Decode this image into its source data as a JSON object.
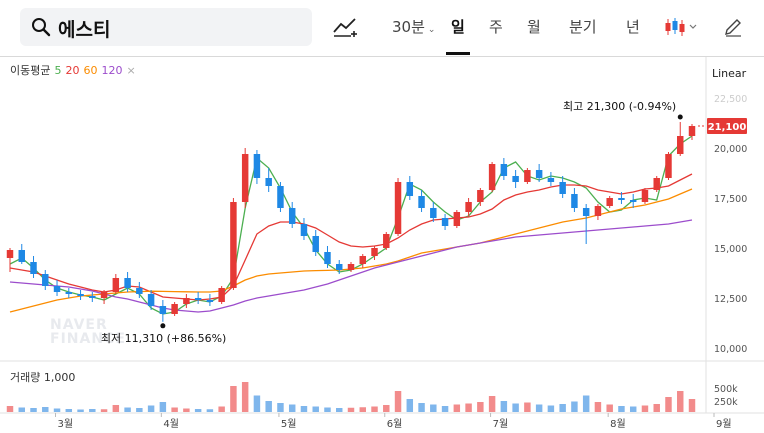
{
  "search": {
    "value": "에스티"
  },
  "toolbar": {
    "intervals": [
      "30분",
      "일",
      "주",
      "월",
      "분기",
      "년"
    ],
    "active": "일"
  },
  "ma_legend": {
    "label": "이동평균",
    "periods": [
      {
        "value": "5",
        "color": "#4caf50"
      },
      {
        "value": "20",
        "color": "#e53935"
      },
      {
        "value": "60",
        "color": "#fb8c00"
      },
      {
        "value": "120",
        "color": "#9c4dcc"
      }
    ],
    "close": "×"
  },
  "scale_label": "Linear",
  "volume_label": "거래량 1,000",
  "watermark": [
    "NAVER",
    "FINANCE"
  ],
  "colors": {
    "up": "#e53935",
    "down": "#1e88e5",
    "price_tag": "#e53935"
  },
  "chart_data": {
    "type": "candlestick",
    "price_axis": {
      "ticks": [
        10000,
        12500,
        15000,
        17500,
        20000,
        22500
      ],
      "tick_labels": [
        "10,000",
        "12,500",
        "15,000",
        "17,500",
        "20,000",
        "22,500"
      ],
      "range": [
        9600,
        23300
      ]
    },
    "volume_axis": {
      "tick_labels": [
        "500k",
        "250k"
      ],
      "ticks": [
        500000,
        250000
      ]
    },
    "x_labels": [
      "3월",
      "4월",
      "5월",
      "6월",
      "7월",
      "8월",
      "9월"
    ],
    "last_price": {
      "value": 21100,
      "label": "21,100"
    },
    "annotations": [
      {
        "text": "최고 21,300 (-0.94%)",
        "value": 21300
      },
      {
        "text": "최저 11,310 (+86.56%)",
        "value": 11310
      }
    ],
    "ma_series": [
      {
        "period": "5",
        "values": [
          14200,
          14500,
          14000,
          13400,
          13000,
          12800,
          12650,
          12550,
          12400,
          12700,
          13000,
          12700,
          12000,
          11700,
          11800,
          12200,
          12400,
          12300,
          12600,
          13500,
          17000,
          19500,
          19000,
          18000,
          16800,
          16000,
          14900,
          14200,
          13800,
          13900,
          14200,
          14600,
          15000,
          16500,
          18200,
          17900,
          17300,
          16800,
          16400,
          16600,
          17300,
          17800,
          19000,
          19300,
          18600,
          18400,
          18600,
          18500,
          18300,
          18000,
          17300,
          16800,
          16900,
          17400,
          17500,
          17400,
          19600,
          20200,
          20600
        ]
      },
      {
        "period": "20",
        "values": [
          14000,
          13900,
          13800,
          13600,
          13400,
          13200,
          13050,
          12900,
          12800,
          12900,
          13100,
          13050,
          12800,
          12550,
          12500,
          12450,
          12400,
          12450,
          12550,
          13100,
          14400,
          15700,
          16100,
          16300,
          16300,
          16200,
          16000,
          15650,
          15300,
          15100,
          15050,
          15100,
          15200,
          15500,
          15900,
          16200,
          16400,
          16450,
          16500,
          16550,
          16700,
          16950,
          17400,
          17650,
          17800,
          17900,
          18050,
          18150,
          18150,
          18100,
          17900,
          17800,
          17700,
          17800,
          17950,
          18000,
          18100,
          18400,
          18700
        ]
      },
      {
        "period": "60",
        "values": [
          11800,
          11950,
          12100,
          12250,
          12400,
          12500,
          12600,
          12650,
          12700,
          12750,
          12800,
          12820,
          12840,
          12830,
          12820,
          12810,
          12800,
          12800,
          12850,
          13100,
          13400,
          13600,
          13700,
          13750,
          13800,
          13850,
          13870,
          13880,
          13900,
          13950,
          14000,
          14100,
          14200,
          14350,
          14550,
          14750,
          14850,
          14950,
          15050,
          15150,
          15250,
          15400,
          15550,
          15700,
          15850,
          16000,
          16150,
          16300,
          16400,
          16500,
          16650,
          16800,
          16950,
          17050,
          17150,
          17300,
          17450,
          17700,
          17950
        ]
      },
      {
        "period": "120",
        "values": [
          13300,
          13250,
          13200,
          13150,
          13100,
          13050,
          12950,
          12850,
          12700,
          12550,
          12450,
          12300,
          12150,
          12000,
          11900,
          11850,
          11800,
          11850,
          12000,
          12150,
          12350,
          12500,
          12600,
          12700,
          12800,
          12900,
          13050,
          13200,
          13400,
          13600,
          13800,
          14000,
          14150,
          14300,
          14450,
          14600,
          14750,
          14900,
          15050,
          15150,
          15250,
          15350,
          15450,
          15550,
          15600,
          15650,
          15700,
          15750,
          15800,
          15850,
          15900,
          15950,
          16000,
          16050,
          16100,
          16150,
          16200,
          16300,
          16400
        ]
      }
    ],
    "candles": [
      {
        "o": 14500,
        "h": 15000,
        "l": 13800,
        "c": 14900
      },
      {
        "o": 14900,
        "h": 15200,
        "l": 14200,
        "c": 14300
      },
      {
        "o": 14300,
        "h": 14600,
        "l": 13500,
        "c": 13700
      },
      {
        "o": 13700,
        "h": 13900,
        "l": 12900,
        "c": 13100
      },
      {
        "o": 13100,
        "h": 13400,
        "l": 12600,
        "c": 12800
      },
      {
        "o": 12800,
        "h": 13000,
        "l": 12500,
        "c": 12700
      },
      {
        "o": 12700,
        "h": 12900,
        "l": 12400,
        "c": 12600
      },
      {
        "o": 12600,
        "h": 12800,
        "l": 12300,
        "c": 12500
      },
      {
        "o": 12500,
        "h": 12900,
        "l": 12200,
        "c": 12800
      },
      {
        "o": 12800,
        "h": 13700,
        "l": 12700,
        "c": 13500
      },
      {
        "o": 13500,
        "h": 13800,
        "l": 12800,
        "c": 13000
      },
      {
        "o": 13000,
        "h": 13300,
        "l": 12500,
        "c": 12700
      },
      {
        "o": 12700,
        "h": 12900,
        "l": 11900,
        "c": 12100
      },
      {
        "o": 12100,
        "h": 12400,
        "l": 11310,
        "c": 11700
      },
      {
        "o": 11700,
        "h": 12300,
        "l": 11600,
        "c": 12200
      },
      {
        "o": 12200,
        "h": 12700,
        "l": 12000,
        "c": 12500
      },
      {
        "o": 12500,
        "h": 12800,
        "l": 12200,
        "c": 12400
      },
      {
        "o": 12400,
        "h": 12700,
        "l": 12100,
        "c": 12300
      },
      {
        "o": 12300,
        "h": 13100,
        "l": 12200,
        "c": 13000
      },
      {
        "o": 13000,
        "h": 17500,
        "l": 12900,
        "c": 17300
      },
      {
        "o": 17300,
        "h": 20000,
        "l": 17000,
        "c": 19700
      },
      {
        "o": 19700,
        "h": 19900,
        "l": 18200,
        "c": 18500
      },
      {
        "o": 18500,
        "h": 19000,
        "l": 17800,
        "c": 18100
      },
      {
        "o": 18100,
        "h": 18300,
        "l": 16800,
        "c": 17000
      },
      {
        "o": 17000,
        "h": 17300,
        "l": 16000,
        "c": 16200
      },
      {
        "o": 16200,
        "h": 16500,
        "l": 15400,
        "c": 15600
      },
      {
        "o": 15600,
        "h": 15900,
        "l": 14600,
        "c": 14800
      },
      {
        "o": 14800,
        "h": 15100,
        "l": 14000,
        "c": 14200
      },
      {
        "o": 14200,
        "h": 14400,
        "l": 13700,
        "c": 13900
      },
      {
        "o": 13900,
        "h": 14300,
        "l": 13800,
        "c": 14200
      },
      {
        "o": 14200,
        "h": 14700,
        "l": 14000,
        "c": 14600
      },
      {
        "o": 14600,
        "h": 15100,
        "l": 14400,
        "c": 15000
      },
      {
        "o": 15000,
        "h": 15800,
        "l": 14900,
        "c": 15700
      },
      {
        "o": 15700,
        "h": 18500,
        "l": 15600,
        "c": 18300
      },
      {
        "o": 18300,
        "h": 18600,
        "l": 17400,
        "c": 17600
      },
      {
        "o": 17600,
        "h": 17900,
        "l": 16800,
        "c": 17000
      },
      {
        "o": 17000,
        "h": 17300,
        "l": 16300,
        "c": 16500
      },
      {
        "o": 16500,
        "h": 16700,
        "l": 15900,
        "c": 16100
      },
      {
        "o": 16100,
        "h": 16900,
        "l": 16000,
        "c": 16800
      },
      {
        "o": 16800,
        "h": 17500,
        "l": 16600,
        "c": 17300
      },
      {
        "o": 17300,
        "h": 18000,
        "l": 17100,
        "c": 17900
      },
      {
        "o": 17900,
        "h": 19300,
        "l": 17800,
        "c": 19200
      },
      {
        "o": 19200,
        "h": 19500,
        "l": 18400,
        "c": 18600
      },
      {
        "o": 18600,
        "h": 18900,
        "l": 18000,
        "c": 18300
      },
      {
        "o": 18300,
        "h": 19000,
        "l": 18200,
        "c": 18900
      },
      {
        "o": 18900,
        "h": 19200,
        "l": 18300,
        "c": 18500
      },
      {
        "o": 18500,
        "h": 18800,
        "l": 18100,
        "c": 18300
      },
      {
        "o": 18300,
        "h": 18600,
        "l": 17500,
        "c": 17700
      },
      {
        "o": 17700,
        "h": 18000,
        "l": 16800,
        "c": 17000
      },
      {
        "o": 17000,
        "h": 17200,
        "l": 15200,
        "c": 16600
      },
      {
        "o": 16600,
        "h": 17200,
        "l": 16400,
        "c": 17100
      },
      {
        "o": 17100,
        "h": 17600,
        "l": 17000,
        "c": 17500
      },
      {
        "o": 17500,
        "h": 17800,
        "l": 17200,
        "c": 17400
      },
      {
        "o": 17400,
        "h": 17700,
        "l": 17000,
        "c": 17300
      },
      {
        "o": 17300,
        "h": 18000,
        "l": 17200,
        "c": 17900
      },
      {
        "o": 17900,
        "h": 18600,
        "l": 17800,
        "c": 18500
      },
      {
        "o": 18500,
        "h": 19800,
        "l": 18400,
        "c": 19700
      },
      {
        "o": 19700,
        "h": 21300,
        "l": 19600,
        "c": 20600
      },
      {
        "o": 20600,
        "h": 21200,
        "l": 20400,
        "c": 21100
      }
    ],
    "volume": [
      120,
      90,
      80,
      100,
      70,
      60,
      50,
      60,
      55,
      140,
      90,
      80,
      130,
      200,
      90,
      70,
      60,
      55,
      110,
      520,
      600,
      330,
      220,
      180,
      150,
      120,
      110,
      90,
      80,
      85,
      95,
      110,
      140,
      420,
      260,
      180,
      150,
      120,
      150,
      170,
      200,
      320,
      220,
      170,
      190,
      150,
      130,
      160,
      210,
      330,
      200,
      150,
      120,
      110,
      130,
      160,
      300,
      420,
      260
    ]
  }
}
